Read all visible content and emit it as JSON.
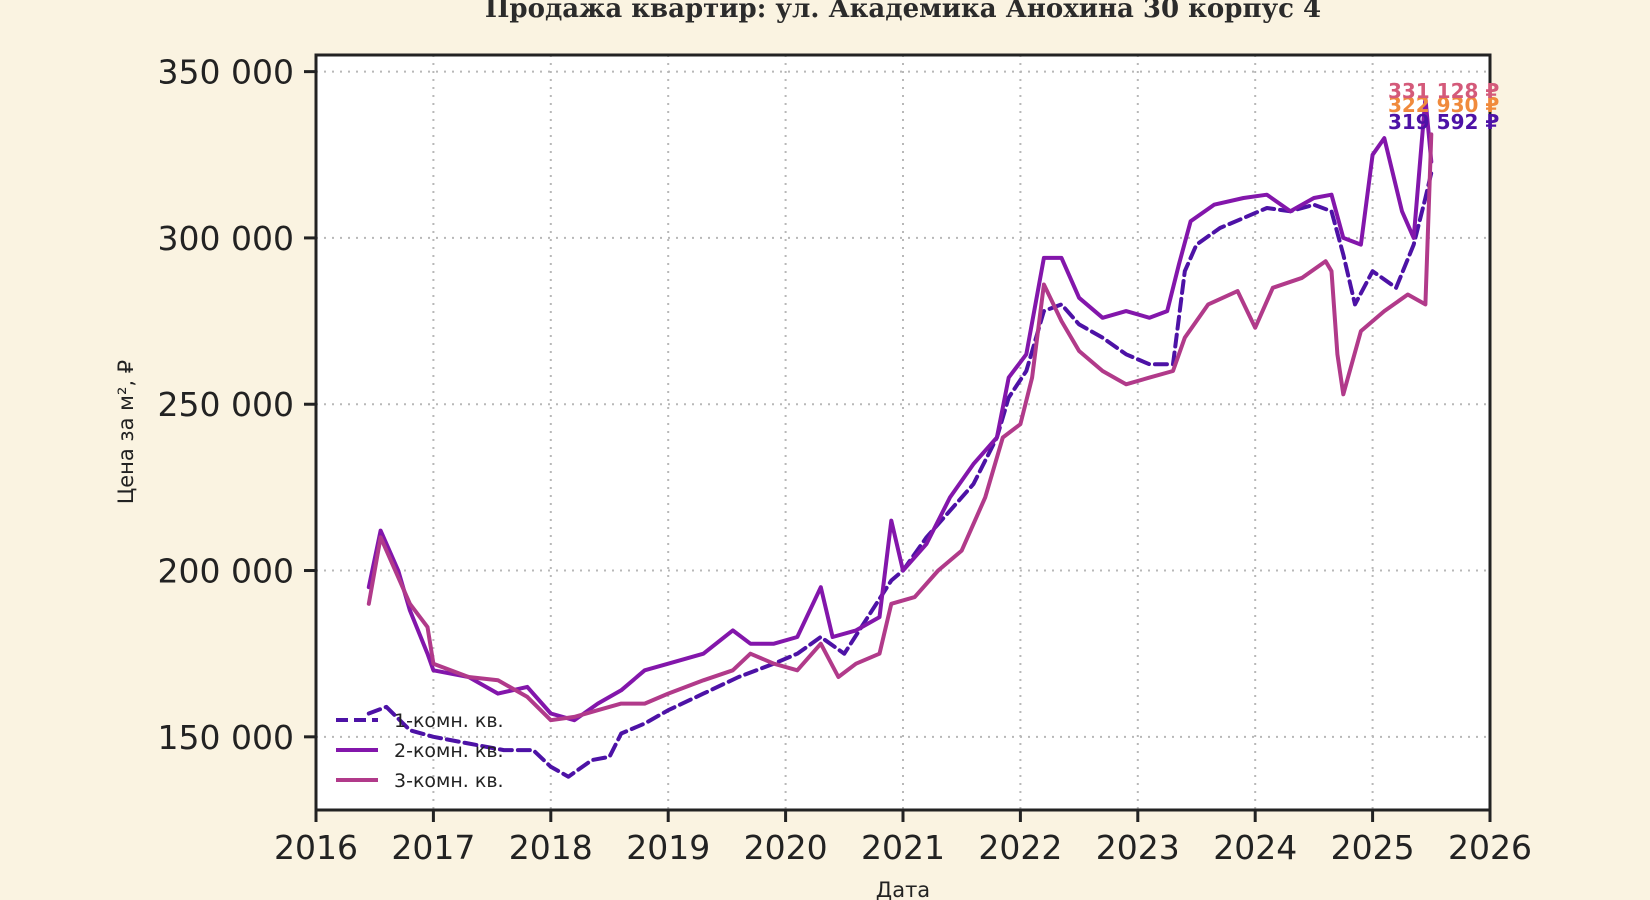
{
  "chart_data": {
    "type": "line",
    "title": "Продажа квартир: ул. Академика Анохина 30 корпус 4",
    "xlabel": "Дата",
    "ylabel": "Цена за м², ₽",
    "xlim": [
      2016,
      2026
    ],
    "ylim": [
      128000,
      355000
    ],
    "x_ticks": [
      2016,
      2017,
      2018,
      2019,
      2020,
      2021,
      2022,
      2023,
      2024,
      2025,
      2026
    ],
    "x_tick_labels": [
      "2016",
      "2017",
      "2018",
      "2019",
      "2020",
      "2021",
      "2022",
      "2023",
      "2024",
      "2025",
      "2026"
    ],
    "y_ticks": [
      150000,
      200000,
      250000,
      300000,
      350000
    ],
    "y_tick_labels": [
      "150 000",
      "200 000",
      "250 000",
      "300 000",
      "350 000"
    ],
    "grid": true,
    "legend_position": "bottom-left",
    "series": [
      {
        "name": "1-комн. кв.",
        "color": "#4d12a6",
        "dash": "dashed",
        "end_label": "319 592 ₽",
        "points": [
          [
            2016.45,
            157000
          ],
          [
            2016.6,
            159000
          ],
          [
            2016.8,
            152000
          ],
          [
            2017.0,
            150000
          ],
          [
            2017.3,
            148000
          ],
          [
            2017.6,
            146000
          ],
          [
            2017.85,
            146000
          ],
          [
            2018.0,
            141000
          ],
          [
            2018.15,
            138000
          ],
          [
            2018.35,
            143000
          ],
          [
            2018.5,
            144000
          ],
          [
            2018.6,
            151000
          ],
          [
            2018.8,
            154000
          ],
          [
            2019.0,
            158000
          ],
          [
            2019.3,
            163000
          ],
          [
            2019.6,
            168000
          ],
          [
            2019.9,
            172000
          ],
          [
            2020.1,
            175000
          ],
          [
            2020.3,
            180000
          ],
          [
            2020.5,
            175000
          ],
          [
            2020.7,
            186000
          ],
          [
            2020.9,
            197000
          ],
          [
            2021.0,
            200000
          ],
          [
            2021.2,
            210000
          ],
          [
            2021.4,
            218000
          ],
          [
            2021.6,
            226000
          ],
          [
            2021.8,
            240000
          ],
          [
            2021.9,
            252000
          ],
          [
            2022.05,
            260000
          ],
          [
            2022.2,
            278000
          ],
          [
            2022.35,
            280000
          ],
          [
            2022.5,
            274000
          ],
          [
            2022.7,
            270000
          ],
          [
            2022.9,
            265000
          ],
          [
            2023.1,
            262000
          ],
          [
            2023.3,
            262000
          ],
          [
            2023.4,
            290000
          ],
          [
            2023.5,
            298000
          ],
          [
            2023.7,
            303000
          ],
          [
            2023.9,
            306000
          ],
          [
            2024.1,
            309000
          ],
          [
            2024.3,
            308000
          ],
          [
            2024.5,
            310000
          ],
          [
            2024.65,
            308000
          ],
          [
            2024.75,
            295000
          ],
          [
            2024.85,
            280000
          ],
          [
            2025.0,
            290000
          ],
          [
            2025.2,
            285000
          ],
          [
            2025.35,
            298000
          ],
          [
            2025.45,
            312000
          ],
          [
            2025.5,
            319592
          ]
        ]
      },
      {
        "name": "2-комн. кв.",
        "color": "#8316ab",
        "dash": "solid",
        "end_label": "322 930 ₽",
        "end_label_color": "#f08a3c",
        "points": [
          [
            2016.45,
            195000
          ],
          [
            2016.55,
            212000
          ],
          [
            2016.7,
            200000
          ],
          [
            2016.8,
            188000
          ],
          [
            2016.95,
            175000
          ],
          [
            2017.0,
            170000
          ],
          [
            2017.3,
            168000
          ],
          [
            2017.55,
            163000
          ],
          [
            2017.8,
            165000
          ],
          [
            2018.0,
            157000
          ],
          [
            2018.2,
            155000
          ],
          [
            2018.4,
            160000
          ],
          [
            2018.6,
            164000
          ],
          [
            2018.8,
            170000
          ],
          [
            2019.0,
            172000
          ],
          [
            2019.3,
            175000
          ],
          [
            2019.55,
            182000
          ],
          [
            2019.7,
            178000
          ],
          [
            2019.9,
            178000
          ],
          [
            2020.1,
            180000
          ],
          [
            2020.3,
            195000
          ],
          [
            2020.4,
            180000
          ],
          [
            2020.6,
            182000
          ],
          [
            2020.8,
            186000
          ],
          [
            2020.9,
            215000
          ],
          [
            2021.0,
            200000
          ],
          [
            2021.2,
            208000
          ],
          [
            2021.4,
            222000
          ],
          [
            2021.6,
            232000
          ],
          [
            2021.8,
            240000
          ],
          [
            2021.9,
            258000
          ],
          [
            2022.05,
            265000
          ],
          [
            2022.2,
            294000
          ],
          [
            2022.35,
            294000
          ],
          [
            2022.5,
            282000
          ],
          [
            2022.7,
            276000
          ],
          [
            2022.9,
            278000
          ],
          [
            2023.1,
            276000
          ],
          [
            2023.25,
            278000
          ],
          [
            2023.35,
            292000
          ],
          [
            2023.45,
            305000
          ],
          [
            2023.65,
            310000
          ],
          [
            2023.9,
            312000
          ],
          [
            2024.1,
            313000
          ],
          [
            2024.3,
            308000
          ],
          [
            2024.5,
            312000
          ],
          [
            2024.65,
            313000
          ],
          [
            2024.75,
            300000
          ],
          [
            2024.9,
            298000
          ],
          [
            2025.0,
            325000
          ],
          [
            2025.1,
            330000
          ],
          [
            2025.25,
            308000
          ],
          [
            2025.35,
            300000
          ],
          [
            2025.45,
            342000
          ],
          [
            2025.5,
            322930
          ]
        ]
      },
      {
        "name": "3-комн. кв.",
        "color": "#b13a8a",
        "dash": "solid",
        "end_label": "331 128 ₽",
        "end_label_color": "#d45a7a",
        "points": [
          [
            2016.45,
            190000
          ],
          [
            2016.55,
            210000
          ],
          [
            2016.7,
            198000
          ],
          [
            2016.8,
            190000
          ],
          [
            2016.95,
            183000
          ],
          [
            2017.0,
            172000
          ],
          [
            2017.3,
            168000
          ],
          [
            2017.55,
            167000
          ],
          [
            2017.8,
            162000
          ],
          [
            2018.0,
            155000
          ],
          [
            2018.2,
            156000
          ],
          [
            2018.4,
            158000
          ],
          [
            2018.6,
            160000
          ],
          [
            2018.8,
            160000
          ],
          [
            2019.0,
            163000
          ],
          [
            2019.3,
            167000
          ],
          [
            2019.55,
            170000
          ],
          [
            2019.7,
            175000
          ],
          [
            2019.9,
            172000
          ],
          [
            2020.1,
            170000
          ],
          [
            2020.3,
            178000
          ],
          [
            2020.45,
            168000
          ],
          [
            2020.6,
            172000
          ],
          [
            2020.8,
            175000
          ],
          [
            2020.9,
            190000
          ],
          [
            2021.1,
            192000
          ],
          [
            2021.3,
            200000
          ],
          [
            2021.5,
            206000
          ],
          [
            2021.7,
            222000
          ],
          [
            2021.85,
            240000
          ],
          [
            2022.0,
            244000
          ],
          [
            2022.1,
            258000
          ],
          [
            2022.2,
            286000
          ],
          [
            2022.35,
            275000
          ],
          [
            2022.5,
            266000
          ],
          [
            2022.7,
            260000
          ],
          [
            2022.9,
            256000
          ],
          [
            2023.1,
            258000
          ],
          [
            2023.3,
            260000
          ],
          [
            2023.4,
            270000
          ],
          [
            2023.6,
            280000
          ],
          [
            2023.85,
            284000
          ],
          [
            2024.0,
            273000
          ],
          [
            2024.15,
            285000
          ],
          [
            2024.4,
            288000
          ],
          [
            2024.6,
            293000
          ],
          [
            2024.65,
            290000
          ],
          [
            2024.7,
            265000
          ],
          [
            2024.75,
            253000
          ],
          [
            2024.9,
            272000
          ],
          [
            2025.1,
            278000
          ],
          [
            2025.3,
            283000
          ],
          [
            2025.45,
            280000
          ],
          [
            2025.5,
            331128
          ]
        ]
      }
    ]
  }
}
